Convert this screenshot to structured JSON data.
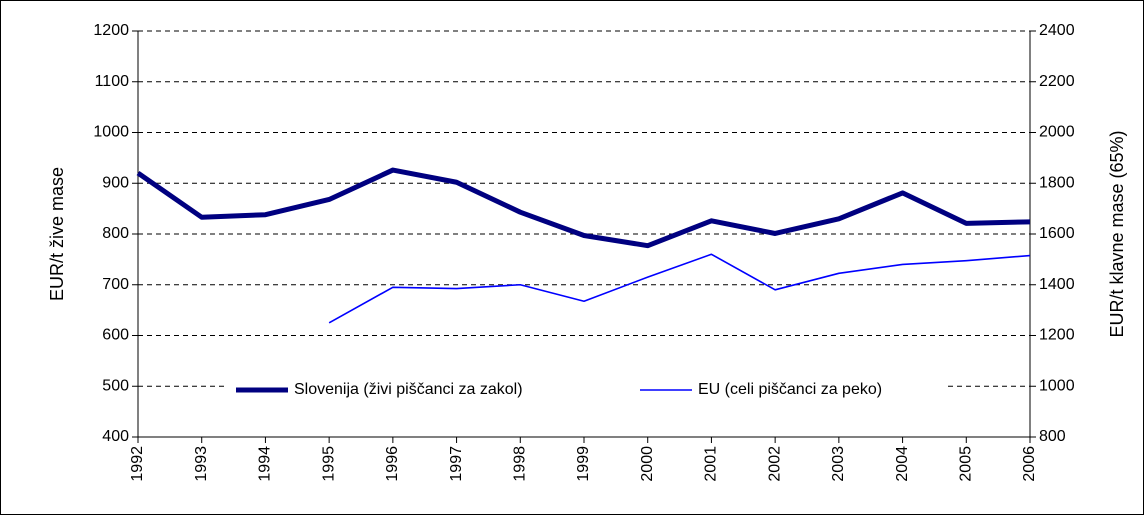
{
  "chart_data": {
    "type": "line",
    "categories": [
      "1992",
      "1993",
      "1994",
      "1995",
      "1996",
      "1997",
      "1998",
      "1999",
      "2000",
      "2001",
      "2002",
      "2003",
      "2004",
      "2005",
      "2006"
    ],
    "series": [
      {
        "name": "Slovenija (živi piščanci za zakol)",
        "color": "#000080",
        "values": [
          920,
          833,
          838,
          868,
          926,
          902,
          843,
          797,
          777,
          826,
          801,
          830,
          881,
          821,
          824
        ]
      },
      {
        "name": "EU (celi piščanci za peko)",
        "color": "#0000ff",
        "axis": "y2",
        "values": [
          null,
          null,
          null,
          1250,
          1390,
          1385,
          1400,
          1335,
          1430,
          1520,
          1380,
          1445,
          1480,
          1495,
          1515
        ]
      }
    ],
    "ylabel": "EUR/t žive mase",
    "y2label": "EUR/t klavne mase (65%)",
    "ylim": [
      400,
      1200
    ],
    "yticks": [
      400,
      500,
      600,
      700,
      800,
      900,
      1000,
      1100,
      1200
    ],
    "y2lim": [
      800,
      2400
    ],
    "y2ticks": [
      800,
      1000,
      1200,
      1400,
      1600,
      1800,
      2000,
      2200,
      2400
    ],
    "grid": true,
    "legend": "bottom"
  }
}
